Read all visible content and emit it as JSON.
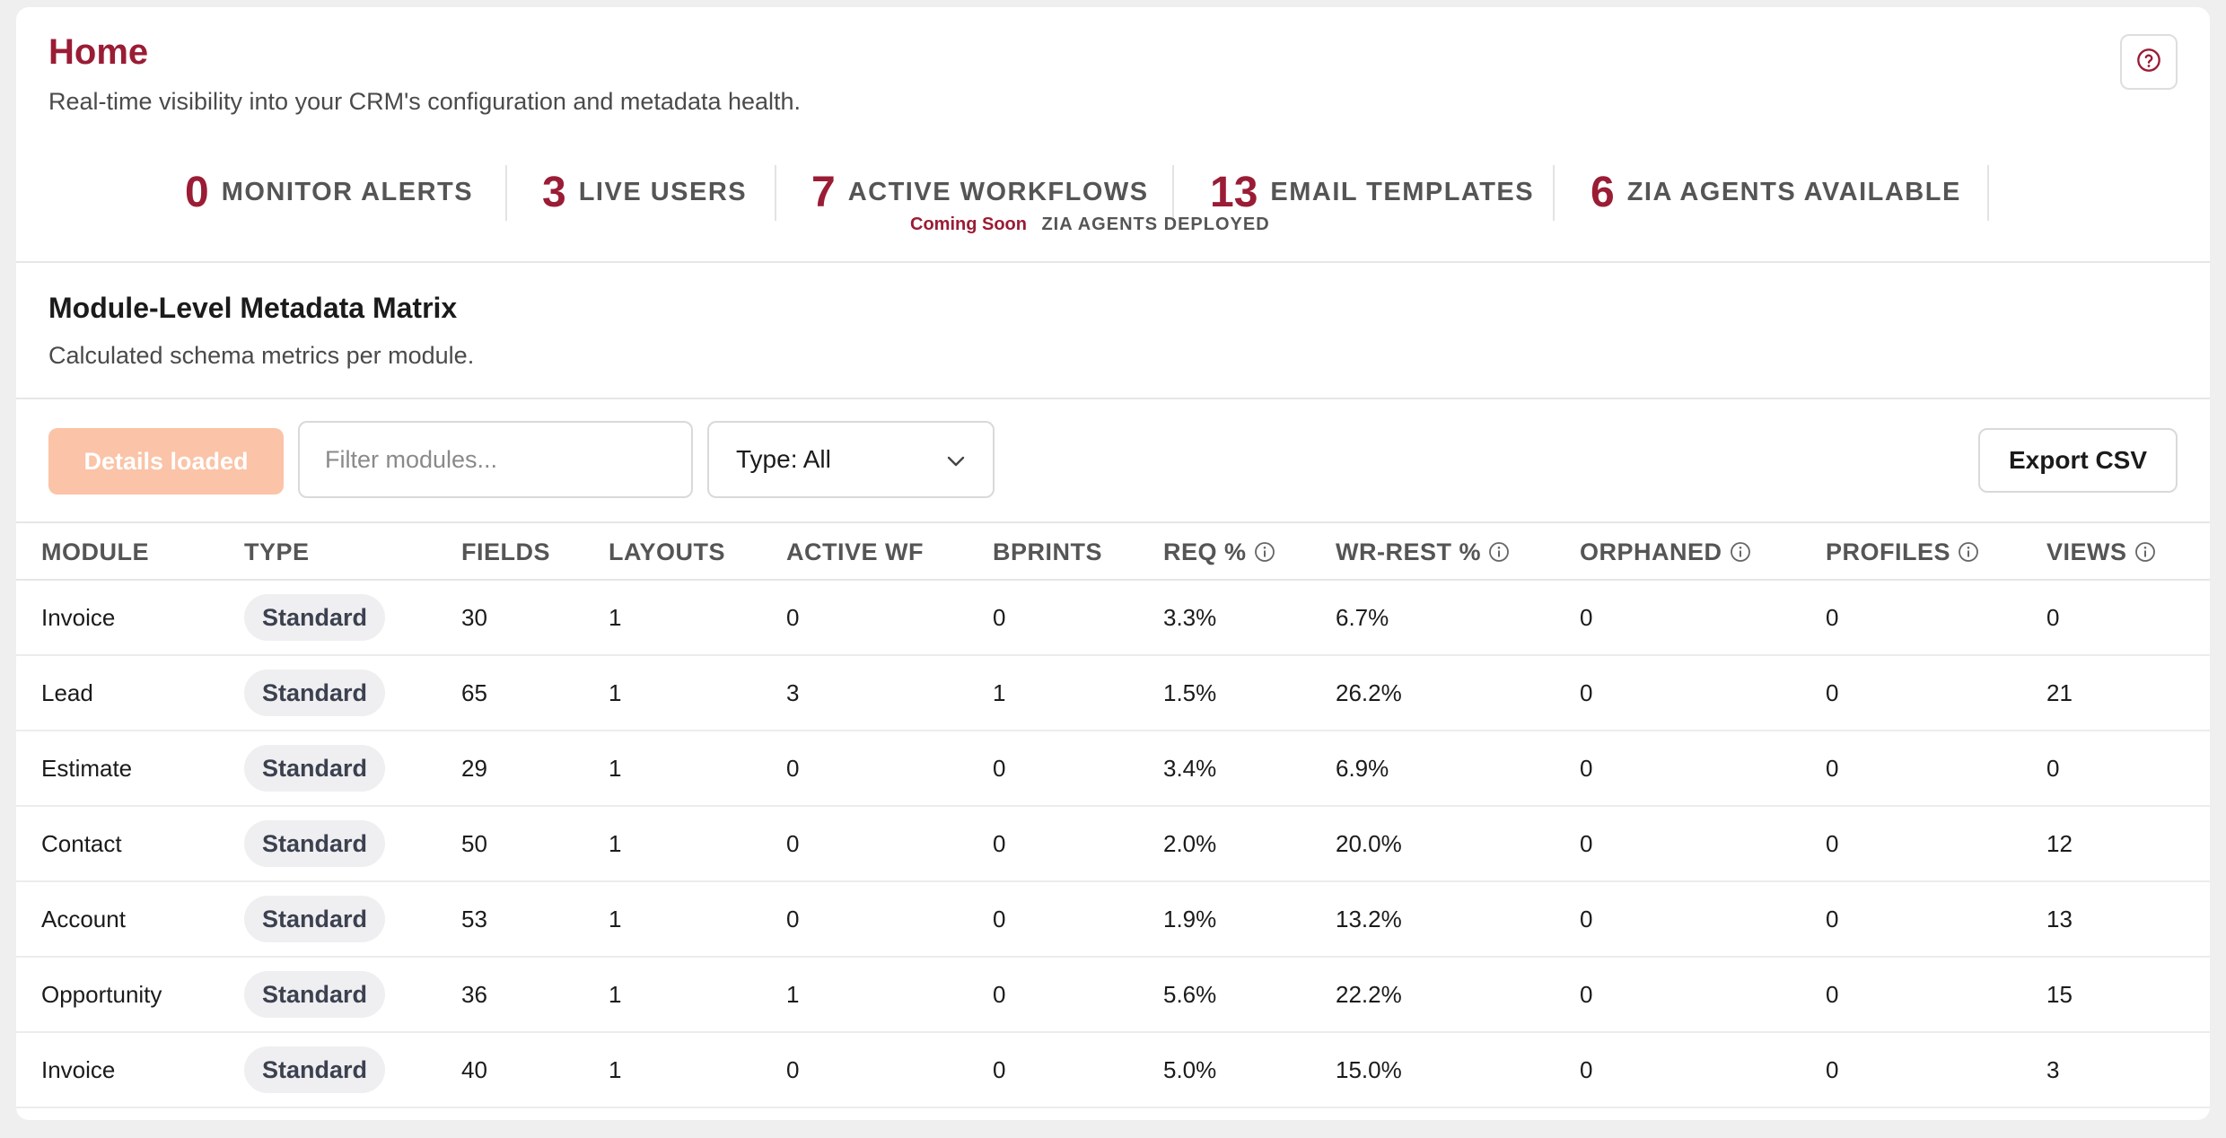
{
  "header": {
    "title": "Home",
    "subtitle": "Real-time visibility into your CRM's configuration and metadata health.",
    "help_icon": "question-circle-icon"
  },
  "stats": [
    {
      "value": "0",
      "label": "MONITOR ALERTS"
    },
    {
      "value": "3",
      "label": "LIVE USERS"
    },
    {
      "value": "7",
      "label": "ACTIVE WORKFLOWS"
    },
    {
      "value": "13",
      "label": "EMAIL TEMPLATES"
    },
    {
      "value": "6",
      "label": "ZIA AGENTS AVAILABLE"
    }
  ],
  "stats_note": {
    "badge": "Coming Soon",
    "label": "ZIA AGENTS DEPLOYED"
  },
  "matrix": {
    "title": "Module-Level Metadata Matrix",
    "description": "Calculated schema metrics per module."
  },
  "toolbar": {
    "details_label": "Details loaded",
    "filter_placeholder": "Filter modules...",
    "type_select_value": "Type: All",
    "export_label": "Export CSV"
  },
  "colors": {
    "accent": "#9a1c35",
    "details_button": "#fbc3a7"
  },
  "table": {
    "columns": [
      "MODULE",
      "TYPE",
      "FIELDS",
      "LAYOUTS",
      "ACTIVE WF",
      "BPRINTS",
      "REQ %",
      "WR-REST %",
      "ORPHANED",
      "PROFILES",
      "VIEWS"
    ],
    "rows": [
      [
        "Invoice",
        "Standard",
        "30",
        "1",
        "0",
        "0",
        "3.3%",
        "6.7%",
        "0",
        "0",
        "0"
      ],
      [
        "Lead",
        "Standard",
        "65",
        "1",
        "3",
        "1",
        "1.5%",
        "26.2%",
        "0",
        "0",
        "21"
      ],
      [
        "Estimate",
        "Standard",
        "29",
        "1",
        "0",
        "0",
        "3.4%",
        "6.9%",
        "0",
        "0",
        "0"
      ],
      [
        "Contact",
        "Standard",
        "50",
        "1",
        "0",
        "0",
        "2.0%",
        "20.0%",
        "0",
        "0",
        "12"
      ],
      [
        "Account",
        "Standard",
        "53",
        "1",
        "0",
        "0",
        "1.9%",
        "13.2%",
        "0",
        "0",
        "13"
      ],
      [
        "Opportunity",
        "Standard",
        "36",
        "1",
        "1",
        "0",
        "5.6%",
        "22.2%",
        "0",
        "0",
        "15"
      ],
      [
        "Invoice",
        "Standard",
        "40",
        "1",
        "0",
        "0",
        "5.0%",
        "15.0%",
        "0",
        "0",
        "3"
      ]
    ]
  }
}
